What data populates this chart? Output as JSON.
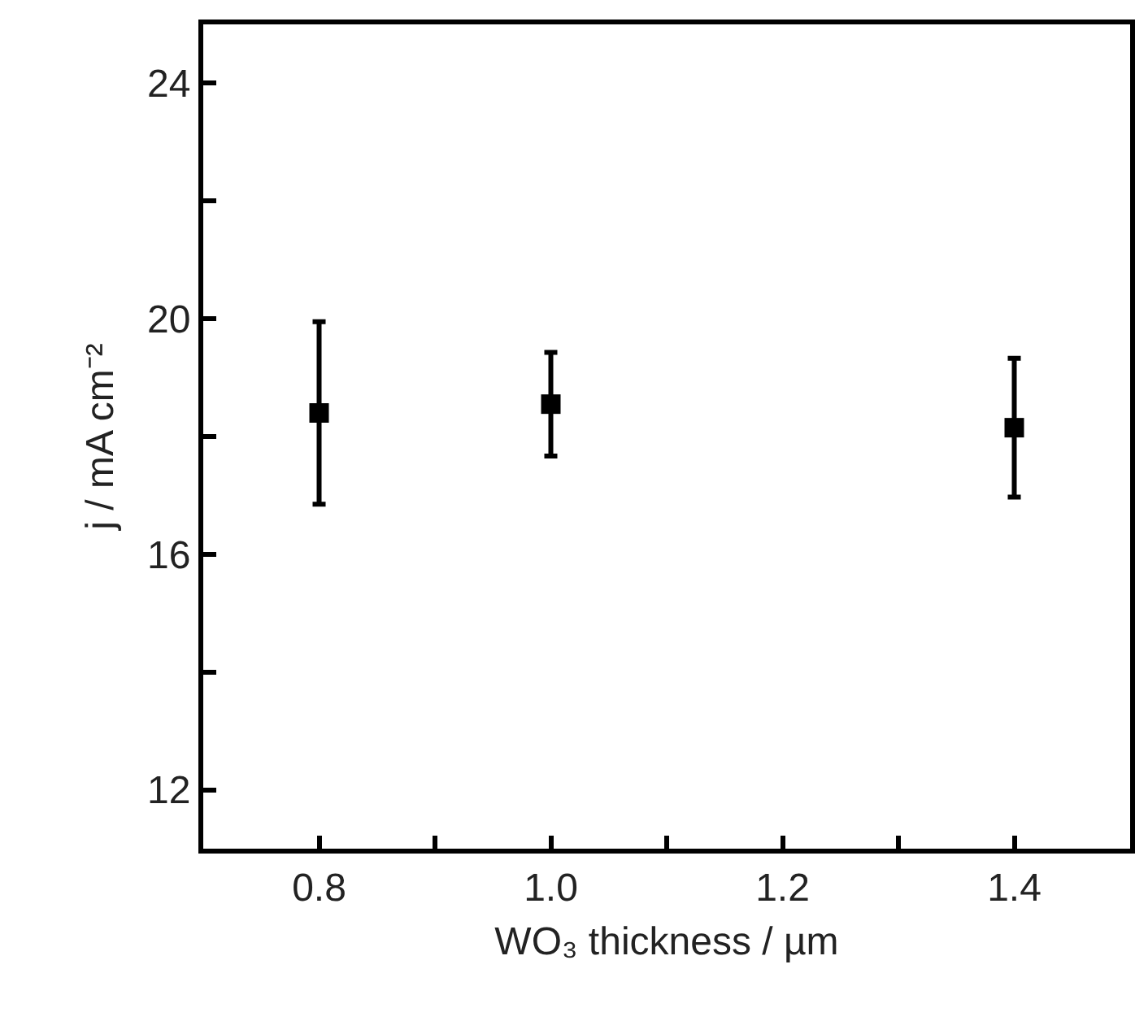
{
  "chart_data": {
    "type": "scatter",
    "xlabel": "WO₃ thickness / µm",
    "ylabel": "j / mA cm⁻²",
    "x": [
      0.8,
      1.0,
      1.4
    ],
    "series": [
      {
        "color": "#000000",
        "values": [
          18.4,
          18.55,
          18.15
        ],
        "errors": [
          1.55,
          0.88,
          1.18
        ]
      }
    ],
    "xlim": [
      0.7,
      1.5
    ],
    "xticks": [
      0.8,
      {
        "value": 0.9,
        "label": null
      },
      {
        "value": 1.0,
        "label": "1.0"
      },
      {
        "value": 1.1,
        "label": null
      },
      1.2,
      {
        "value": 1.3,
        "label": null
      },
      1.4
    ],
    "ylim": [
      11,
      25
    ],
    "yticks": [
      12,
      {
        "value": 14,
        "label": null
      },
      16,
      {
        "value": 18,
        "label": null
      },
      20,
      {
        "value": 22,
        "label": null
      },
      24
    ],
    "grid": false,
    "legend": false,
    "marker": "square"
  }
}
